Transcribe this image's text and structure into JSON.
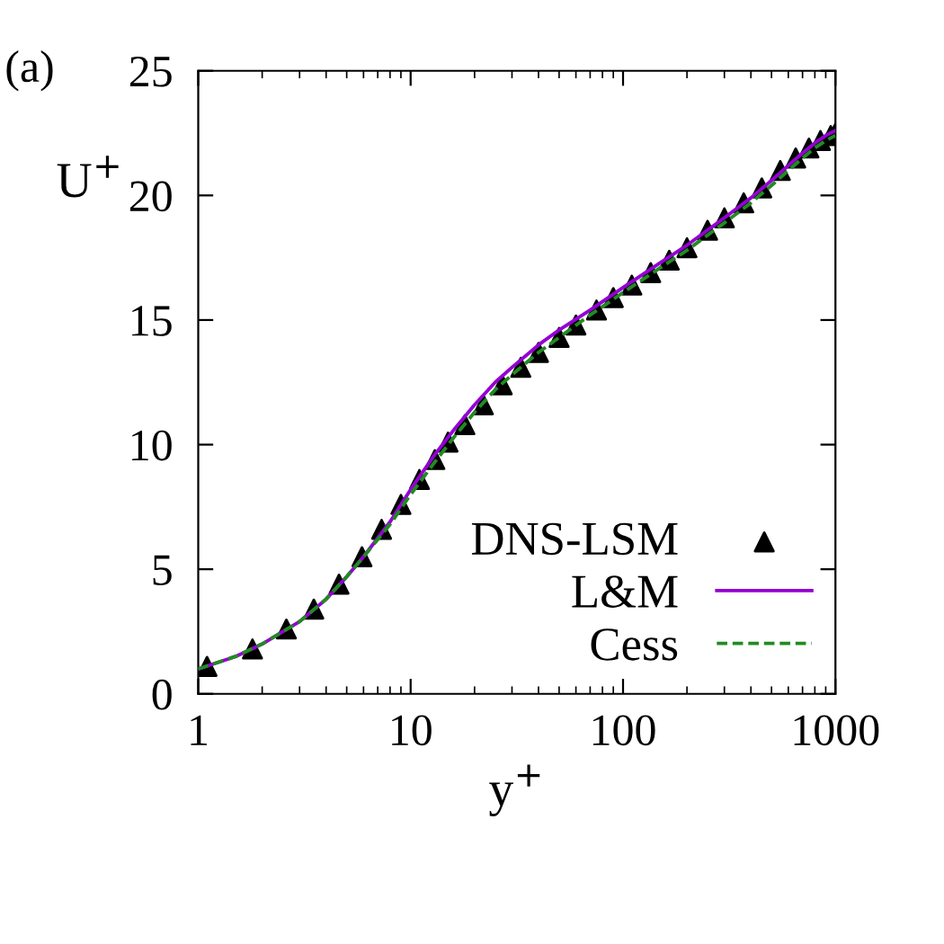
{
  "chart_data": {
    "type": "line",
    "xlabel": "y$^{+}$",
    "ylabel": "U$^{+}$",
    "annotations": [
      "(a)"
    ],
    "log": "x",
    "xlim": [
      1,
      1000
    ],
    "ylim": [
      0,
      25
    ],
    "xticks": [
      1,
      10,
      100,
      1000
    ],
    "yticks": [
      0,
      5,
      10,
      15,
      20,
      25
    ],
    "grid": false,
    "legend": "bottom right",
    "series": [
      {
        "name": "DNS-LSM",
        "type": "scatter",
        "marker": "triangle",
        "color": "#000000",
        "x": [
          1.1,
          1.8,
          2.6,
          3.5,
          4.6,
          5.9,
          7.3,
          9,
          11,
          13,
          15,
          18,
          22,
          27,
          33,
          40,
          50,
          60,
          75,
          90,
          110,
          135,
          165,
          200,
          250,
          300,
          370,
          450,
          550,
          650,
          750,
          850,
          950,
          1000
        ],
        "values": [
          1.1,
          1.8,
          2.6,
          3.4,
          4.4,
          5.5,
          6.6,
          7.6,
          8.6,
          9.4,
          10.1,
          10.8,
          11.6,
          12.4,
          13.1,
          13.7,
          14.3,
          14.8,
          15.4,
          15.9,
          16.4,
          16.9,
          17.4,
          17.9,
          18.6,
          19.1,
          19.7,
          20.3,
          21,
          21.5,
          21.9,
          22.2,
          22.4,
          22.5
        ]
      },
      {
        "name": "L&M",
        "line_style": "solid",
        "marker": "none",
        "color": "#9400d3",
        "x": [
          1,
          1.5,
          2,
          3,
          4,
          5,
          6,
          8,
          10,
          13,
          16,
          20,
          25,
          30,
          40,
          50,
          70,
          100,
          150,
          200,
          300,
          400,
          500,
          600,
          700,
          800,
          900,
          1000
        ],
        "values": [
          1,
          1.5,
          2,
          2.9,
          3.8,
          4.7,
          5.5,
          6.9,
          8.2,
          9.6,
          10.6,
          11.6,
          12.5,
          13.1,
          14,
          14.6,
          15.4,
          16.3,
          17.3,
          18,
          19.1,
          19.9,
          20.6,
          21.2,
          21.7,
          22.1,
          22.4,
          22.6
        ]
      },
      {
        "name": "Cess",
        "line_style": "dashed",
        "marker": "none",
        "color": "#228b22",
        "x": [
          1,
          1.5,
          2,
          3,
          4,
          5,
          6,
          8,
          10,
          13,
          16,
          20,
          25,
          30,
          40,
          50,
          70,
          100,
          150,
          200,
          300,
          400,
          500,
          600,
          700,
          800,
          900,
          1000
        ],
        "values": [
          1,
          1.5,
          2,
          2.9,
          3.8,
          4.7,
          5.5,
          6.8,
          8,
          9.3,
          10.3,
          11.3,
          12.2,
          12.8,
          13.7,
          14.3,
          15.2,
          16.1,
          17.1,
          17.8,
          18.9,
          19.7,
          20.4,
          21,
          21.5,
          21.9,
          22.2,
          22.4
        ]
      }
    ]
  }
}
